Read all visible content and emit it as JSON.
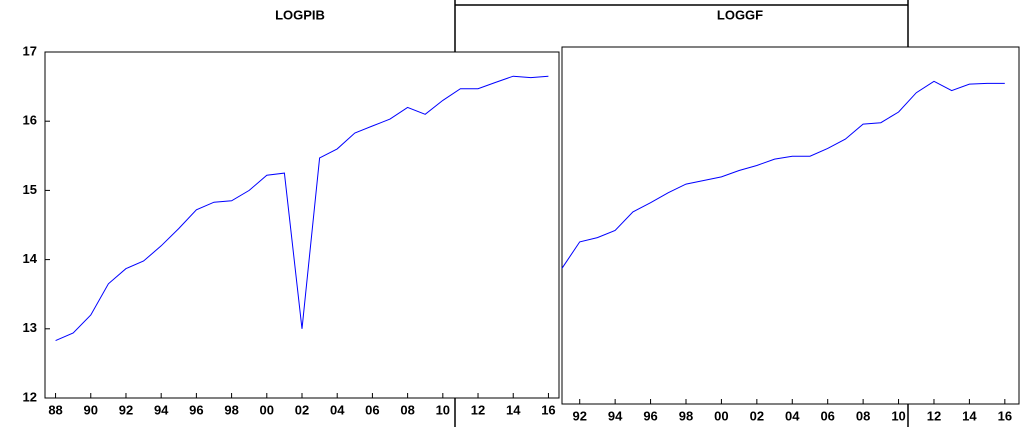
{
  "chart_data": [
    {
      "type": "line",
      "title": "LOGPIB",
      "color": "#0000ff",
      "x": [
        1988,
        1989,
        1990,
        1991,
        1992,
        1993,
        1994,
        1995,
        1996,
        1997,
        1998,
        1999,
        2000,
        2001,
        2002,
        2003,
        2004,
        2005,
        2006,
        2007,
        2008,
        2009,
        2010,
        2011,
        2012,
        2013,
        2014,
        2015,
        2016
      ],
      "values": [
        12.83,
        12.94,
        13.2,
        13.65,
        13.87,
        13.98,
        14.2,
        14.45,
        14.72,
        14.83,
        14.85,
        15.0,
        15.22,
        15.25,
        13.0,
        15.47,
        15.6,
        15.83,
        15.93,
        16.03,
        16.2,
        16.1,
        16.3,
        16.47,
        16.47,
        16.56,
        16.65,
        16.63,
        16.65
      ],
      "xlim": [
        1987.4,
        2016.6
      ],
      "ylim": [
        12,
        17
      ],
      "yticks": [
        12,
        13,
        14,
        15,
        16,
        17
      ],
      "xticks": [
        {
          "value": 1988,
          "label": "88"
        },
        {
          "value": 1990,
          "label": "90"
        },
        {
          "value": 1992,
          "label": "92"
        },
        {
          "value": 1994,
          "label": "94"
        },
        {
          "value": 1996,
          "label": "96"
        },
        {
          "value": 1998,
          "label": "98"
        },
        {
          "value": 2000,
          "label": "00"
        },
        {
          "value": 2002,
          "label": "02"
        },
        {
          "value": 2004,
          "label": "04"
        },
        {
          "value": 2006,
          "label": "06"
        },
        {
          "value": 2008,
          "label": "08"
        },
        {
          "value": 2010,
          "label": "10"
        },
        {
          "value": 2012,
          "label": "12"
        },
        {
          "value": 2014,
          "label": "14"
        },
        {
          "value": 2016,
          "label": "16"
        }
      ]
    },
    {
      "type": "line",
      "title": "LOGGF",
      "color": "#0000ff",
      "x": [
        1991,
        1992,
        1993,
        1994,
        1995,
        1996,
        1997,
        1998,
        1999,
        2000,
        2001,
        2002,
        2003,
        2004,
        2005,
        2006,
        2007,
        2008,
        2009,
        2010,
        2011,
        2012,
        2013,
        2014,
        2015,
        2016
      ],
      "values": [
        13.9,
        14.27,
        14.33,
        14.43,
        14.69,
        14.82,
        14.96,
        15.08,
        15.13,
        15.18,
        15.27,
        15.34,
        15.43,
        15.47,
        15.47,
        15.58,
        15.71,
        15.92,
        15.94,
        16.09,
        16.36,
        16.52,
        16.39,
        16.48,
        16.49,
        16.49
      ],
      "xlim": [
        1991,
        2016.8
      ],
      "ylim": [
        12,
        17
      ],
      "xticks": [
        {
          "value": 1992,
          "label": "92"
        },
        {
          "value": 1994,
          "label": "94"
        },
        {
          "value": 1996,
          "label": "96"
        },
        {
          "value": 1998,
          "label": "98"
        },
        {
          "value": 2000,
          "label": "00"
        },
        {
          "value": 2002,
          "label": "02"
        },
        {
          "value": 2004,
          "label": "04"
        },
        {
          "value": 2006,
          "label": "06"
        },
        {
          "value": 2008,
          "label": "08"
        },
        {
          "value": 2010,
          "label": "10"
        },
        {
          "value": 2012,
          "label": "12"
        },
        {
          "value": 2014,
          "label": "14"
        },
        {
          "value": 2016,
          "label": "16"
        }
      ]
    }
  ]
}
